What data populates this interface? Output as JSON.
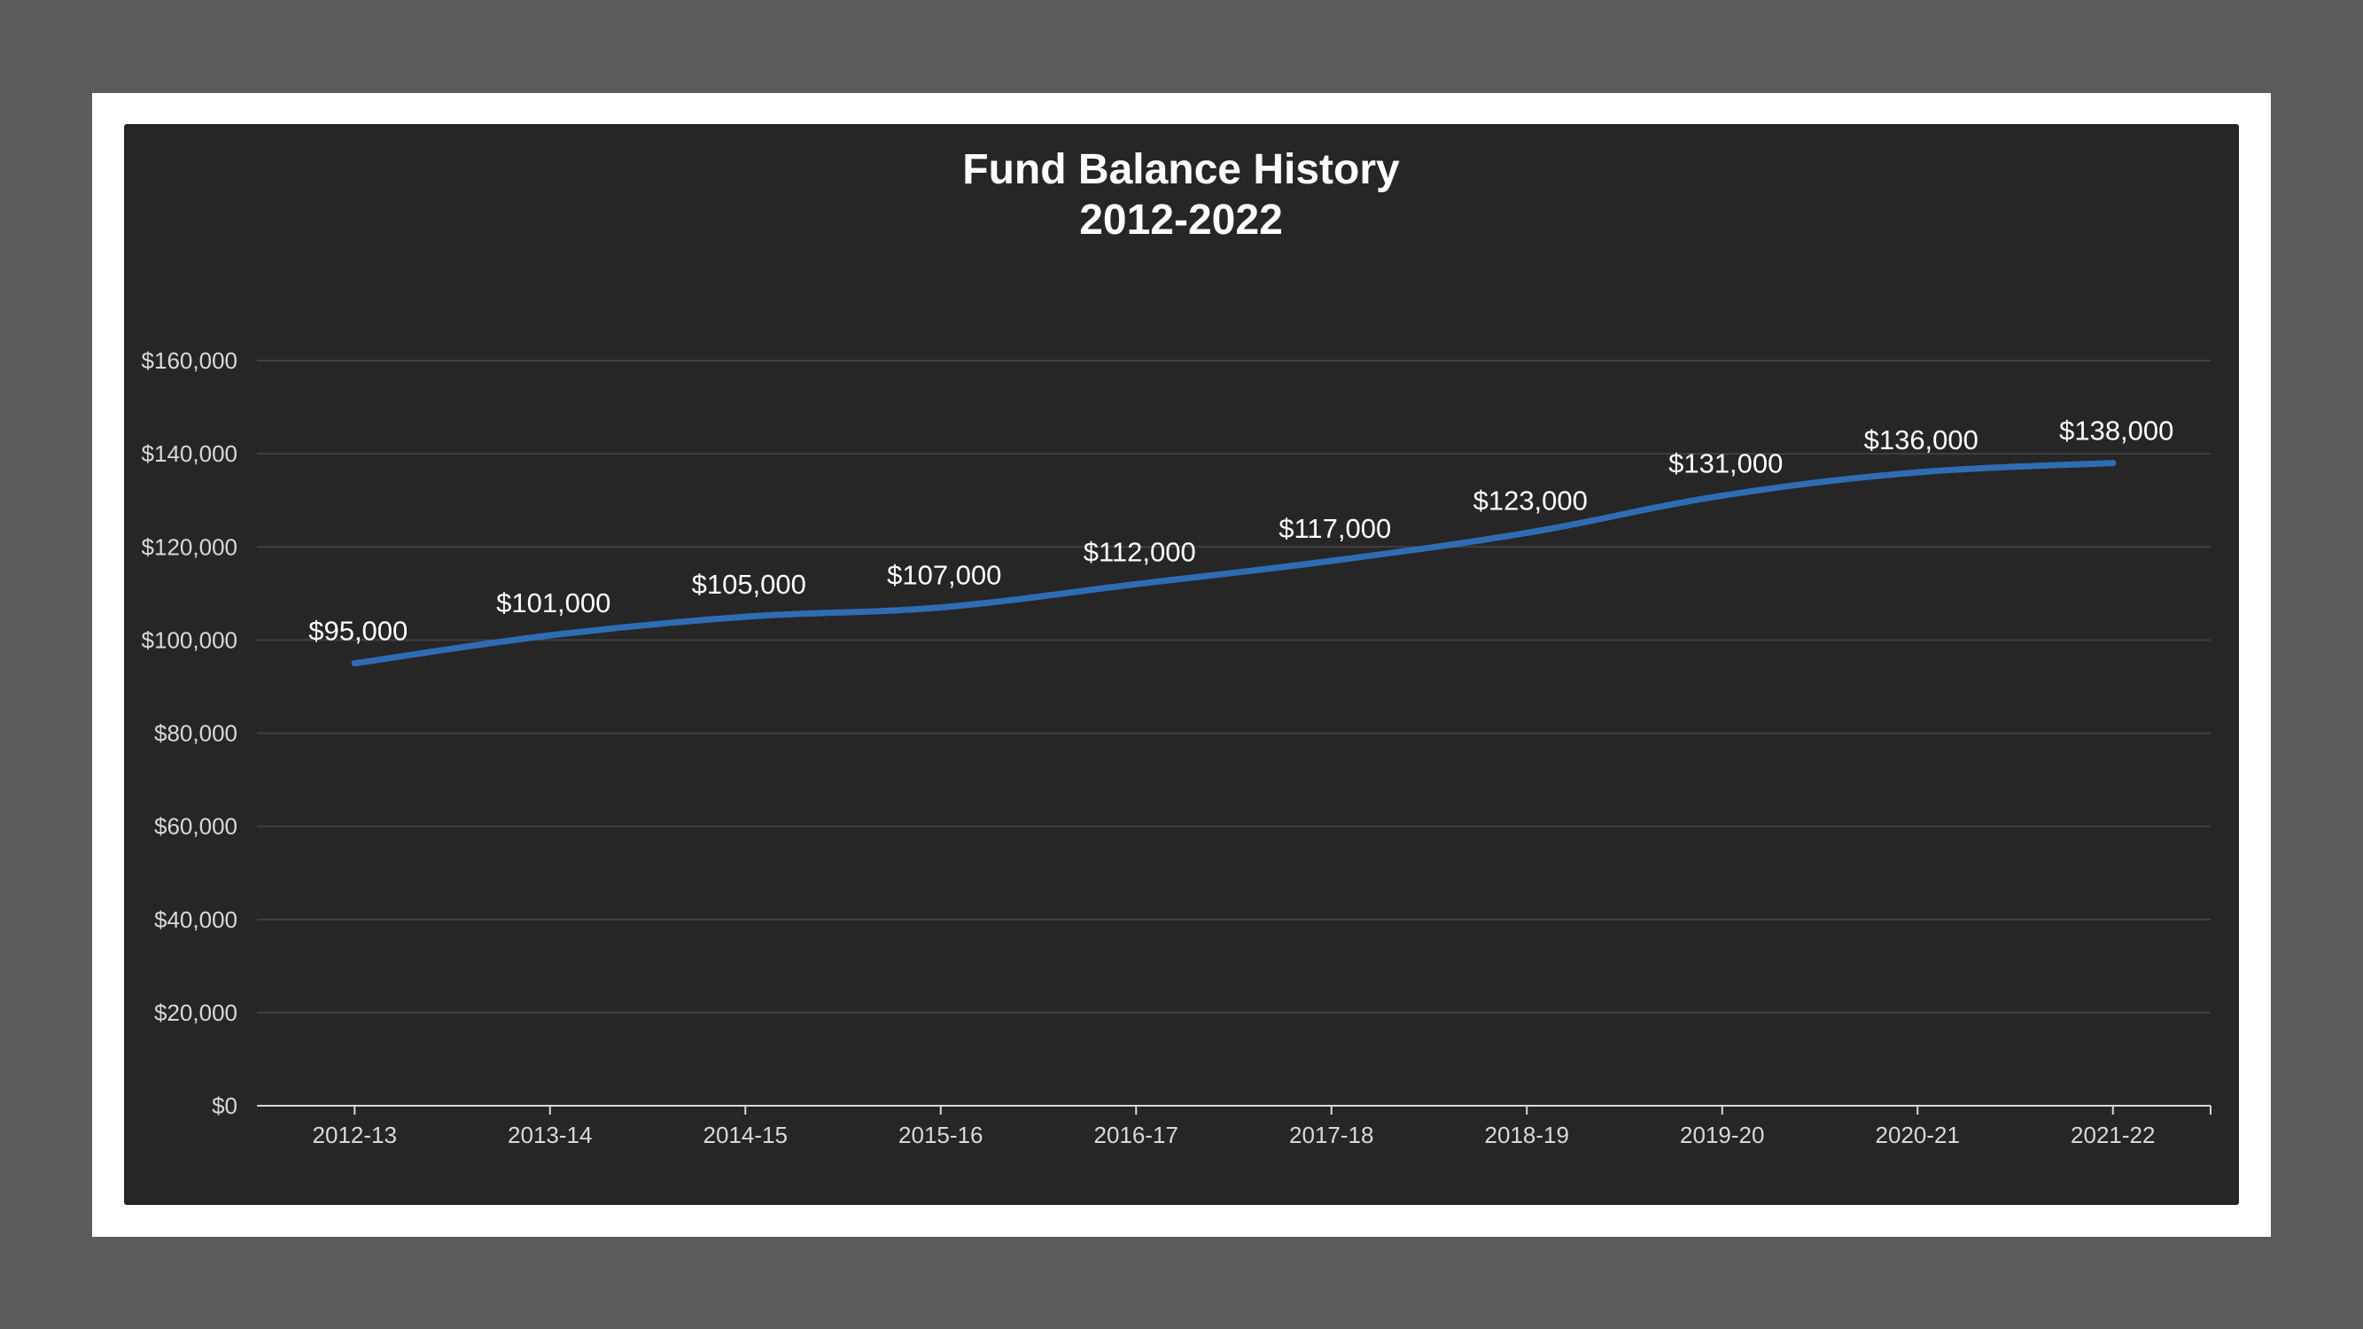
{
  "chart_data": {
    "type": "line",
    "title_lines": [
      "Fund Balance History",
      "2012-2022"
    ],
    "categories": [
      "2012-13",
      "2013-14",
      "2014-15",
      "2015-16",
      "2016-17",
      "2017-18",
      "2018-19",
      "2019-20",
      "2020-21",
      "2021-22"
    ],
    "values": [
      95000,
      101000,
      105000,
      107000,
      112000,
      117000,
      123000,
      131000,
      136000,
      138000
    ],
    "data_labels": [
      "$95,000",
      "$101,000",
      "$105,000",
      "$107,000",
      "$112,000",
      "$117,000",
      "$123,000",
      "$131,000",
      "$136,000",
      "$138,000"
    ],
    "y_ticks": [
      0,
      20000,
      40000,
      60000,
      80000,
      100000,
      120000,
      140000,
      160000
    ],
    "y_tick_labels": [
      "$0",
      "$20,000",
      "$40,000",
      "$60,000",
      "$80,000",
      "$100,000",
      "$120,000",
      "$140,000",
      "$160,000"
    ],
    "ylim": [
      0,
      160000
    ],
    "grid": true,
    "legend": "none",
    "colors": {
      "line": "#2e6db4",
      "panel_background": "#262626",
      "outer_background": "#5b5b5b",
      "frame": "#ffffff",
      "gridline": "#404040",
      "axis": "#d9d9d9"
    }
  }
}
